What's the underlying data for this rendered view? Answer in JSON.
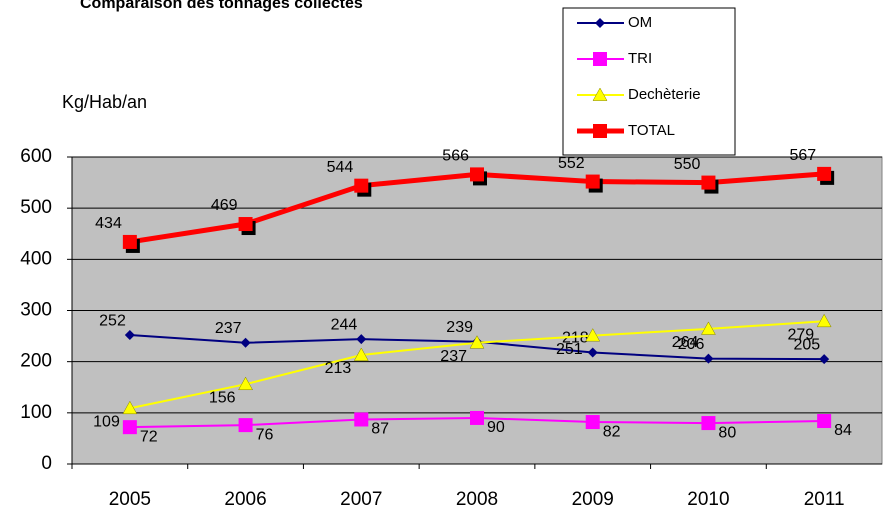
{
  "chart_data": {
    "type": "line",
    "title": "Comparaison des tonnages collectés",
    "y_axis_label": "Kg/Hab/an",
    "categories": [
      "2005",
      "2006",
      "2007",
      "2008",
      "2009",
      "2010",
      "2011"
    ],
    "series": [
      {
        "name": "OM",
        "color": "#000080",
        "marker": "diamond",
        "values": [
          252,
          237,
          244,
          239,
          218,
          206,
          205
        ]
      },
      {
        "name": "TRI",
        "color": "#ff00ff",
        "marker": "square",
        "values": [
          72,
          76,
          87,
          90,
          82,
          80,
          84
        ]
      },
      {
        "name": "Dechèterie",
        "color": "#ffff00",
        "marker": "triangle",
        "values": [
          109,
          156,
          213,
          237,
          251,
          264,
          279
        ]
      },
      {
        "name": "TOTAL",
        "color": "#ff0000",
        "marker": "square",
        "values": [
          434,
          469,
          544,
          566,
          552,
          550,
          567
        ]
      }
    ],
    "ylim": [
      0,
      600
    ],
    "yticks": [
      0,
      100,
      200,
      300,
      400,
      500,
      600
    ],
    "grid": true,
    "legend_position": "top-right"
  }
}
